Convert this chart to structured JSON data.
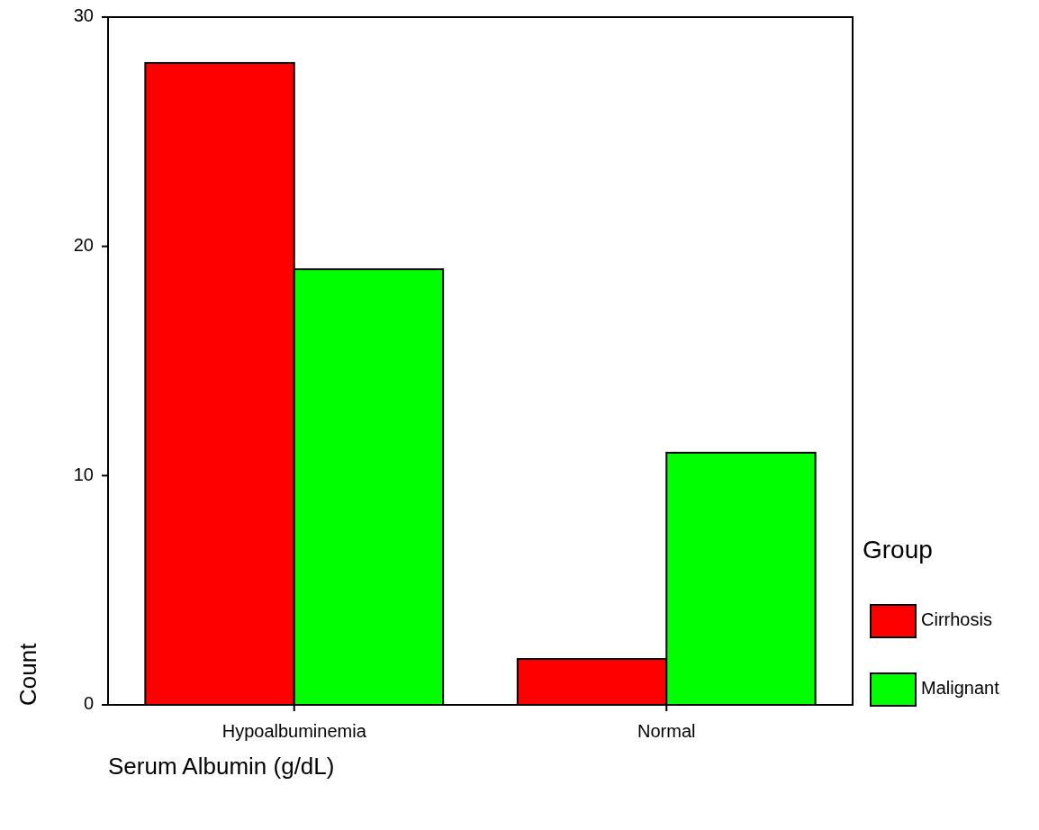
{
  "chart_data": {
    "type": "bar",
    "xlabel": "Serum Albumin (g/dL)",
    "ylabel": "Count",
    "legend_title": "Group",
    "categories": [
      "Hypoalbuminemia",
      "Normal"
    ],
    "series": [
      {
        "name": "Cirrhosis",
        "color": "#ff0000",
        "values": [
          28,
          2
        ]
      },
      {
        "name": "Malignant",
        "color": "#00ff00",
        "values": [
          19,
          11
        ]
      }
    ],
    "ylim": [
      0,
      30
    ],
    "yticks": [
      0,
      10,
      20,
      30
    ],
    "legend": "right",
    "grid": false
  }
}
